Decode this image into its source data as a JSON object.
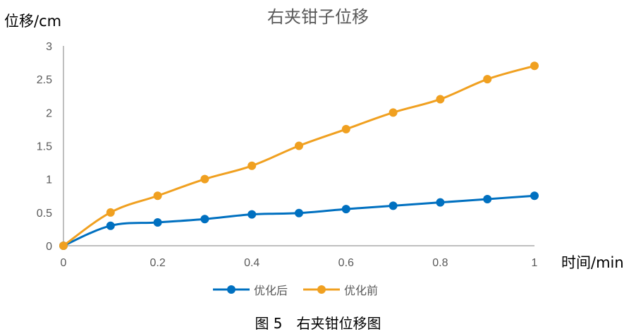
{
  "chart_data": {
    "type": "line",
    "title": "右夹钳子位移",
    "xlabel": "时间/min",
    "ylabel": "位移/cm",
    "x": [
      0,
      0.1,
      0.2,
      0.3,
      0.4,
      0.5,
      0.6,
      0.7,
      0.8,
      0.9,
      1.0
    ],
    "xlim": [
      0,
      1
    ],
    "ylim": [
      0,
      3
    ],
    "x_ticks": [
      "0",
      "0.2",
      "0.4",
      "0.6",
      "0.8",
      "1"
    ],
    "y_ticks": [
      "0",
      "0.5",
      "1",
      "1.5",
      "2",
      "2.5",
      "3"
    ],
    "grid": false,
    "legend_position": "bottom",
    "series": [
      {
        "name": "优化后",
        "color": "#0070C0",
        "values": [
          0,
          0.3,
          0.35,
          0.4,
          0.47,
          0.49,
          0.55,
          0.6,
          0.65,
          0.7,
          0.75
        ]
      },
      {
        "name": "优化前",
        "color": "#F0A020",
        "values": [
          0,
          0.5,
          0.75,
          1.0,
          1.2,
          1.5,
          1.75,
          2.0,
          2.2,
          2.5,
          2.7
        ]
      }
    ]
  },
  "caption": "图 5　右夹钳位移图"
}
